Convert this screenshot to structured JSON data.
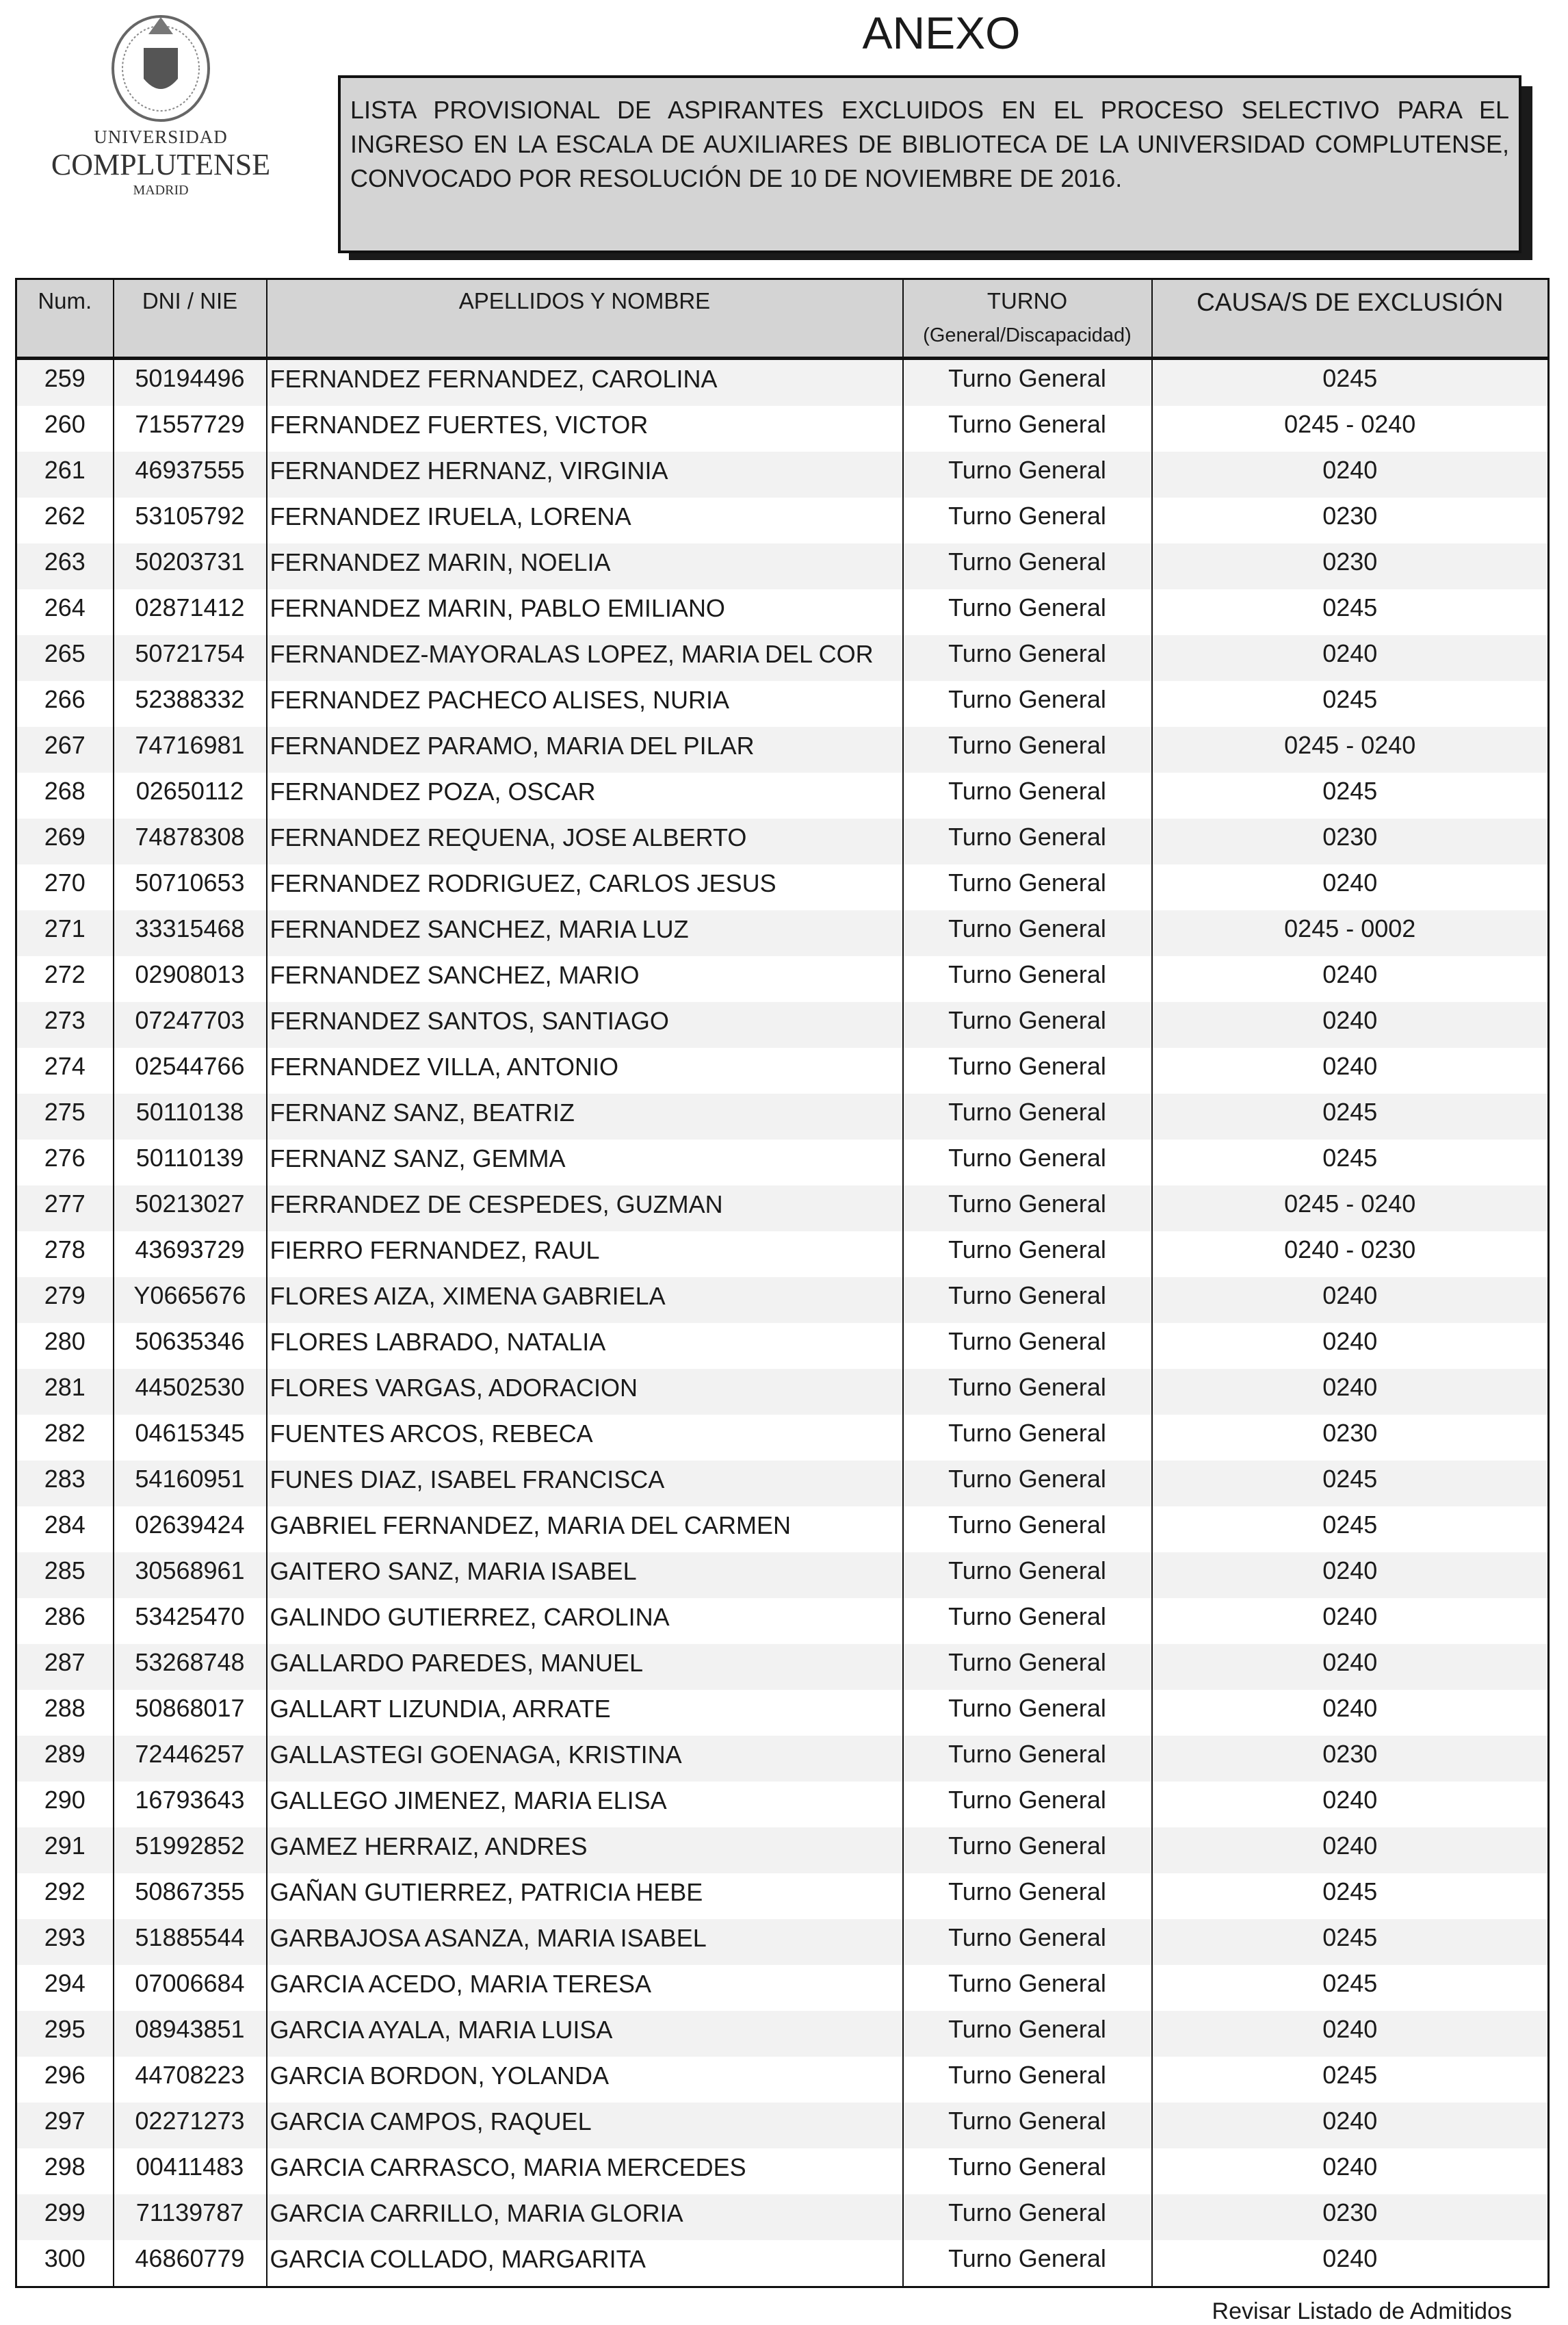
{
  "logo": {
    "line1": "UNIVERSIDAD",
    "line2": "COMPLUTENSE",
    "line3": "MADRID"
  },
  "title": "ANEXO",
  "notice": "LISTA PROVISIONAL DE ASPIRANTES EXCLUIDOS EN EL PROCESO SELECTIVO PARA EL INGRESO EN LA ESCALA DE AUXILIARES DE BIBLIOTECA DE LA UNIVERSIDAD COMPLUTENSE, CONVOCADO POR RESOLUCIÓN DE 10 DE NOVIEMBRE DE 2016.",
  "table": {
    "headers": {
      "num": "Num.",
      "dni": "DNI / NIE",
      "name": "APELLIDOS Y NOMBRE",
      "turno": "TURNO",
      "turno_sub": "(General/Discapacidad)",
      "causa": "CAUSA/S DE EXCLUSIÓN"
    },
    "rows": [
      [
        "259",
        "50194496",
        "FERNANDEZ FERNANDEZ, CAROLINA",
        "Turno General",
        "0245"
      ],
      [
        "260",
        "71557729",
        "FERNANDEZ FUERTES, VICTOR",
        "Turno General",
        "0245 - 0240"
      ],
      [
        "261",
        "46937555",
        "FERNANDEZ HERNANZ, VIRGINIA",
        "Turno General",
        "0240"
      ],
      [
        "262",
        "53105792",
        "FERNANDEZ IRUELA, LORENA",
        "Turno General",
        "0230"
      ],
      [
        "263",
        "50203731",
        "FERNANDEZ MARIN, NOELIA",
        "Turno General",
        "0230"
      ],
      [
        "264",
        "02871412",
        "FERNANDEZ MARIN, PABLO EMILIANO",
        "Turno General",
        "0245"
      ],
      [
        "265",
        "50721754",
        "FERNANDEZ-MAYORALAS LOPEZ, MARIA DEL COR",
        "Turno General",
        "0240"
      ],
      [
        "266",
        "52388332",
        "FERNANDEZ PACHECO ALISES, NURIA",
        "Turno General",
        "0245"
      ],
      [
        "267",
        "74716981",
        "FERNANDEZ PARAMO, MARIA DEL PILAR",
        "Turno General",
        "0245 - 0240"
      ],
      [
        "268",
        "02650112",
        "FERNANDEZ POZA, OSCAR",
        "Turno General",
        "0245"
      ],
      [
        "269",
        "74878308",
        "FERNANDEZ REQUENA, JOSE ALBERTO",
        "Turno General",
        "0230"
      ],
      [
        "270",
        "50710653",
        "FERNANDEZ RODRIGUEZ, CARLOS JESUS",
        "Turno General",
        "0240"
      ],
      [
        "271",
        "33315468",
        "FERNANDEZ SANCHEZ, MARIA LUZ",
        "Turno General",
        "0245 - 0002"
      ],
      [
        "272",
        "02908013",
        "FERNANDEZ SANCHEZ, MARIO",
        "Turno General",
        "0240"
      ],
      [
        "273",
        "07247703",
        "FERNANDEZ SANTOS, SANTIAGO",
        "Turno General",
        "0240"
      ],
      [
        "274",
        "02544766",
        "FERNANDEZ VILLA, ANTONIO",
        "Turno General",
        "0240"
      ],
      [
        "275",
        "50110138",
        "FERNANZ SANZ, BEATRIZ",
        "Turno General",
        "0245"
      ],
      [
        "276",
        "50110139",
        "FERNANZ SANZ, GEMMA",
        "Turno General",
        "0245"
      ],
      [
        "277",
        "50213027",
        "FERRANDEZ DE CESPEDES, GUZMAN",
        "Turno General",
        "0245 - 0240"
      ],
      [
        "278",
        "43693729",
        "FIERRO FERNANDEZ, RAUL",
        "Turno General",
        "0240 - 0230"
      ],
      [
        "279",
        "Y0665676",
        "FLORES AIZA, XIMENA GABRIELA",
        "Turno General",
        "0240"
      ],
      [
        "280",
        "50635346",
        "FLORES LABRADO, NATALIA",
        "Turno General",
        "0240"
      ],
      [
        "281",
        "44502530",
        "FLORES VARGAS, ADORACION",
        "Turno General",
        "0240"
      ],
      [
        "282",
        "04615345",
        "FUENTES ARCOS, REBECA",
        "Turno General",
        "0230"
      ],
      [
        "283",
        "54160951",
        "FUNES DIAZ, ISABEL FRANCISCA",
        "Turno General",
        "0245"
      ],
      [
        "284",
        "02639424",
        "GABRIEL FERNANDEZ, MARIA DEL CARMEN",
        "Turno General",
        "0245"
      ],
      [
        "285",
        "30568961",
        "GAITERO SANZ, MARIA ISABEL",
        "Turno General",
        "0240"
      ],
      [
        "286",
        "53425470",
        "GALINDO GUTIERREZ, CAROLINA",
        "Turno General",
        "0240"
      ],
      [
        "287",
        "53268748",
        "GALLARDO PAREDES, MANUEL",
        "Turno General",
        "0240"
      ],
      [
        "288",
        "50868017",
        "GALLART LIZUNDIA, ARRATE",
        "Turno General",
        "0240"
      ],
      [
        "289",
        "72446257",
        "GALLASTEGI GOENAGA, KRISTINA",
        "Turno General",
        "0230"
      ],
      [
        "290",
        "16793643",
        "GALLEGO JIMENEZ, MARIA ELISA",
        "Turno General",
        "0240"
      ],
      [
        "291",
        "51992852",
        "GAMEZ HERRAIZ, ANDRES",
        "Turno General",
        "0240"
      ],
      [
        "292",
        "50867355",
        "GAÑAN GUTIERREZ, PATRICIA HEBE",
        "Turno General",
        "0245"
      ],
      [
        "293",
        "51885544",
        "GARBAJOSA ASANZA, MARIA ISABEL",
        "Turno General",
        "0245"
      ],
      [
        "294",
        "07006684",
        "GARCIA ACEDO, MARIA TERESA",
        "Turno General",
        "0245"
      ],
      [
        "295",
        "08943851",
        "GARCIA AYALA, MARIA LUISA",
        "Turno General",
        "0240"
      ],
      [
        "296",
        "44708223",
        "GARCIA BORDON, YOLANDA",
        "Turno General",
        "0245"
      ],
      [
        "297",
        "02271273",
        "GARCIA CAMPOS, RAQUEL",
        "Turno General",
        "0240"
      ],
      [
        "298",
        "00411483",
        "GARCIA CARRASCO, MARIA MERCEDES",
        "Turno General",
        "0240"
      ],
      [
        "299",
        "71139787",
        "GARCIA CARRILLO, MARIA GLORIA",
        "Turno General",
        "0230"
      ],
      [
        "300",
        "46860779",
        "GARCIA COLLADO, MARGARITA",
        "Turno General",
        "0240"
      ]
    ]
  },
  "footer": "Revisar Listado de Admitidos"
}
